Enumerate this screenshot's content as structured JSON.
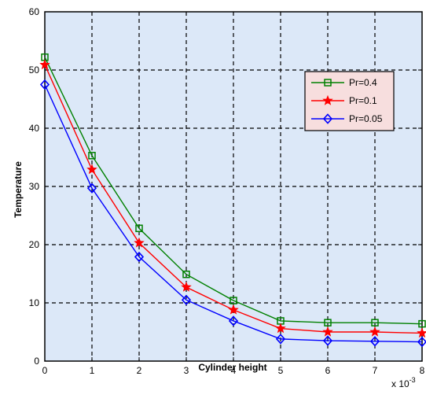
{
  "chart_data": {
    "type": "line",
    "title": "",
    "xlabel": "Cylinder height",
    "ylabel": "Temperature",
    "x_scale_label": "x 10",
    "x_scale_exponent": "-3",
    "x": [
      0,
      1,
      2,
      3,
      4,
      5,
      6,
      7,
      8
    ],
    "xlim": [
      0,
      8
    ],
    "ylim": [
      0,
      60
    ],
    "xticks": [
      "0",
      "1",
      "2",
      "3",
      "4",
      "5",
      "6",
      "7",
      "8"
    ],
    "yticks": [
      "0",
      "10",
      "20",
      "30",
      "40",
      "50",
      "60"
    ],
    "grid": true,
    "legend_position": "top-right",
    "plot_background": "#dce8f8",
    "series": [
      {
        "name": "Pr=0.4",
        "color": "#008000",
        "marker": "square",
        "values": [
          52.2,
          35.3,
          22.8,
          14.9,
          10.4,
          6.9,
          6.6,
          6.6,
          6.4
        ]
      },
      {
        "name": "Pr=0.1",
        "color": "#ff0000",
        "marker": "star",
        "values": [
          50.9,
          32.9,
          20.3,
          12.7,
          8.8,
          5.6,
          5.0,
          5.0,
          4.8
        ]
      },
      {
        "name": "Pr=0.05",
        "color": "#0000ff",
        "marker": "diamond",
        "values": [
          47.5,
          29.7,
          17.9,
          10.5,
          6.9,
          3.8,
          3.5,
          3.4,
          3.3
        ]
      }
    ]
  }
}
